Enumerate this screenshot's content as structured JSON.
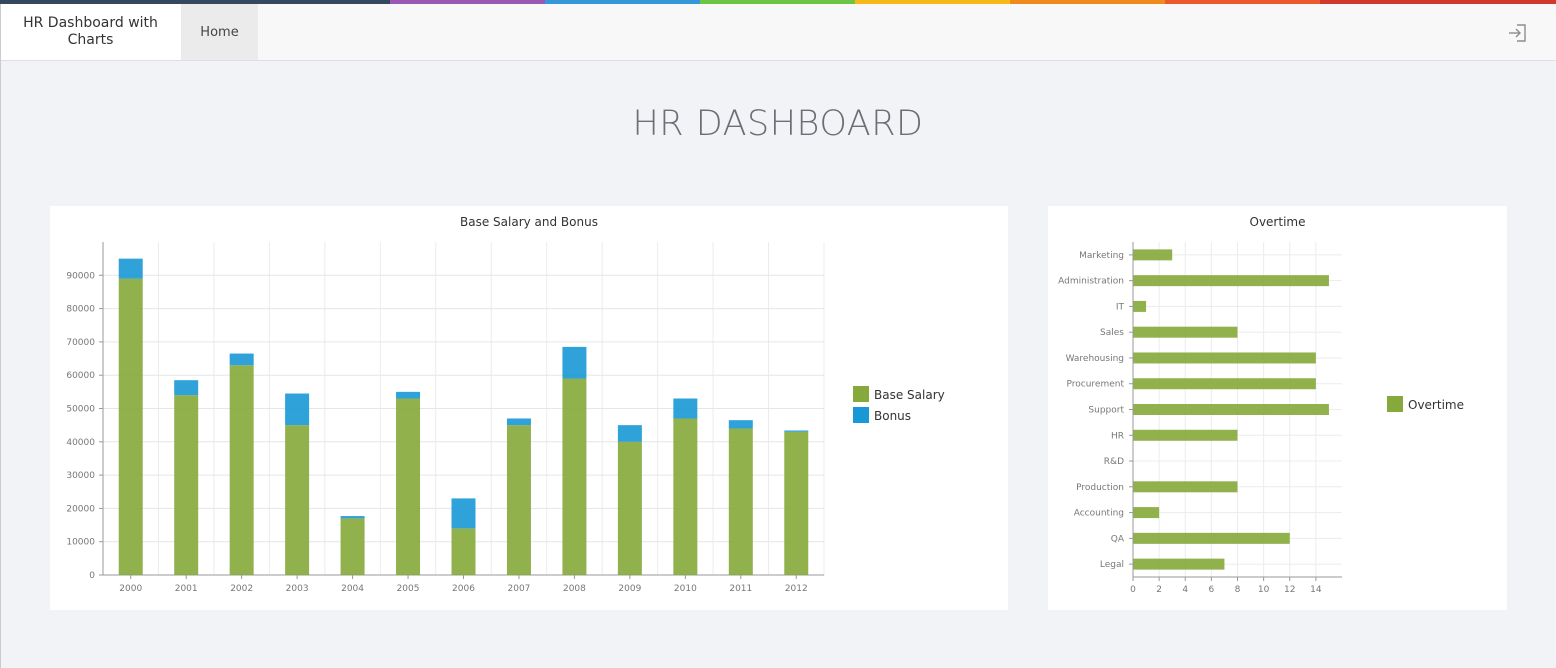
{
  "header": {
    "brand": "HR Dashboard with Charts",
    "nav_home": "Home",
    "logout_icon": "sign-out-icon",
    "strip_colors": [
      "#34495e",
      "#34495e",
      "#9b59b6",
      "#3498db",
      "#6cc644",
      "#f7b81a",
      "#ef8a1c",
      "#ea5a2e",
      "#d03a2a"
    ]
  },
  "page": {
    "title": "HR DASHBOARD"
  },
  "colors": {
    "base_salary": "#85a93a",
    "bonus": "#1898d5",
    "overtime": "#85a93a"
  },
  "salary_chart": {
    "title": "Base Salary and Bonus",
    "chart_data": {
      "type": "bar",
      "stacked": true,
      "categories": [
        "2000",
        "2001",
        "2002",
        "2003",
        "2004",
        "2005",
        "2006",
        "2007",
        "2008",
        "2009",
        "2010",
        "2011",
        "2012"
      ],
      "series": [
        {
          "name": "Base Salary",
          "values": [
            89000,
            54000,
            63000,
            45000,
            17000,
            53000,
            14000,
            45000,
            59000,
            40000,
            47000,
            44000,
            43000
          ]
        },
        {
          "name": "Bonus",
          "values": [
            6000,
            4500,
            3500,
            9500,
            700,
            2000,
            9000,
            2000,
            9500,
            5000,
            6000,
            2500,
            400
          ]
        }
      ],
      "ylim": [
        0,
        100000
      ],
      "yticks": [
        0,
        10000,
        20000,
        30000,
        40000,
        50000,
        60000,
        70000,
        80000,
        90000
      ],
      "grid": true,
      "legend": "right"
    }
  },
  "overtime_chart": {
    "title": "Overtime",
    "chart_data": {
      "type": "bar",
      "orientation": "horizontal",
      "categories": [
        "Marketing",
        "Administration",
        "IT",
        "Sales",
        "Warehousing",
        "Procurement",
        "Support",
        "HR",
        "R&D",
        "Production",
        "Accounting",
        "QA",
        "Legal"
      ],
      "series": [
        {
          "name": "Overtime",
          "values": [
            3,
            15,
            1,
            8,
            14,
            14,
            15,
            8,
            0,
            8,
            2,
            12,
            7
          ]
        }
      ],
      "xlim": [
        0,
        16
      ],
      "xticks": [
        0,
        2,
        4,
        6,
        8,
        10,
        12,
        14
      ],
      "grid": true,
      "legend": "right"
    }
  }
}
